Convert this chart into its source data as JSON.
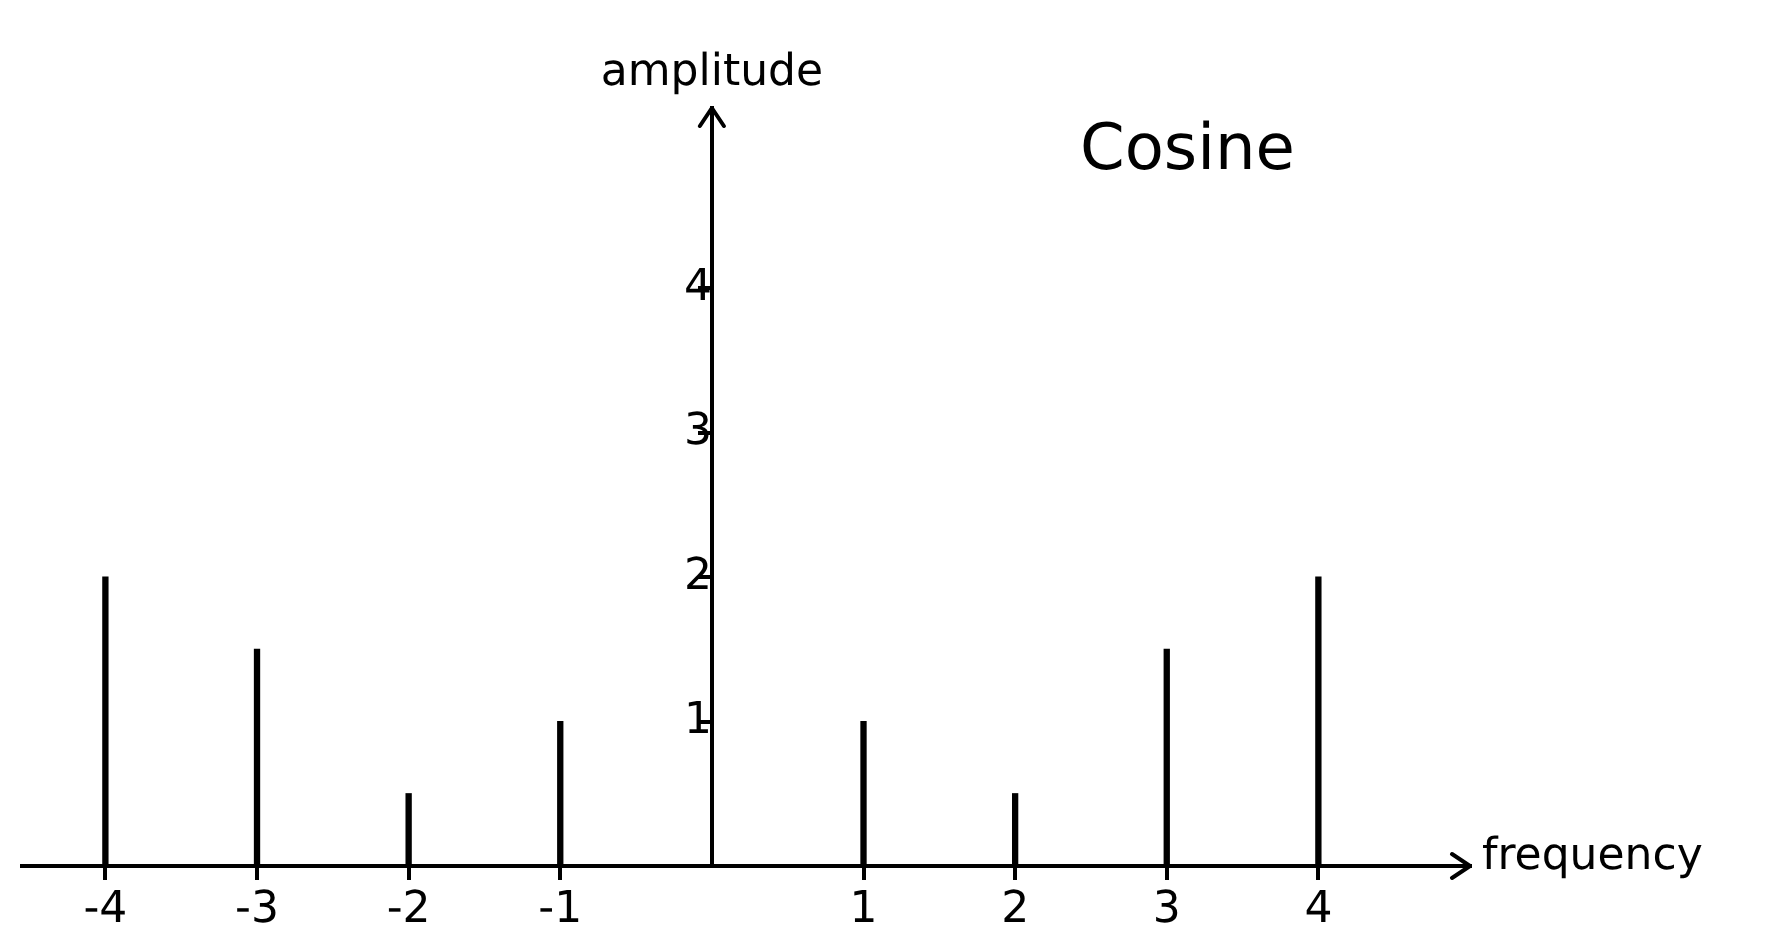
{
  "chart_data": {
    "type": "bar",
    "title": "Cosine",
    "xlabel": "frequency",
    "ylabel": "amplitude",
    "x": [
      -4,
      -3,
      -2,
      -1,
      1,
      2,
      3,
      4
    ],
    "values": [
      2,
      1.5,
      0.5,
      1,
      1,
      0.5,
      1.5,
      2
    ],
    "color": "#000000",
    "xlim": [
      -4.55,
      5.0
    ],
    "xticks": [
      -4,
      -3,
      -2,
      -1,
      1,
      2,
      3,
      4
    ],
    "ylim": [
      0,
      5.25
    ],
    "yticks": [
      1,
      2,
      3,
      4
    ],
    "grid": false,
    "legend": false
  }
}
